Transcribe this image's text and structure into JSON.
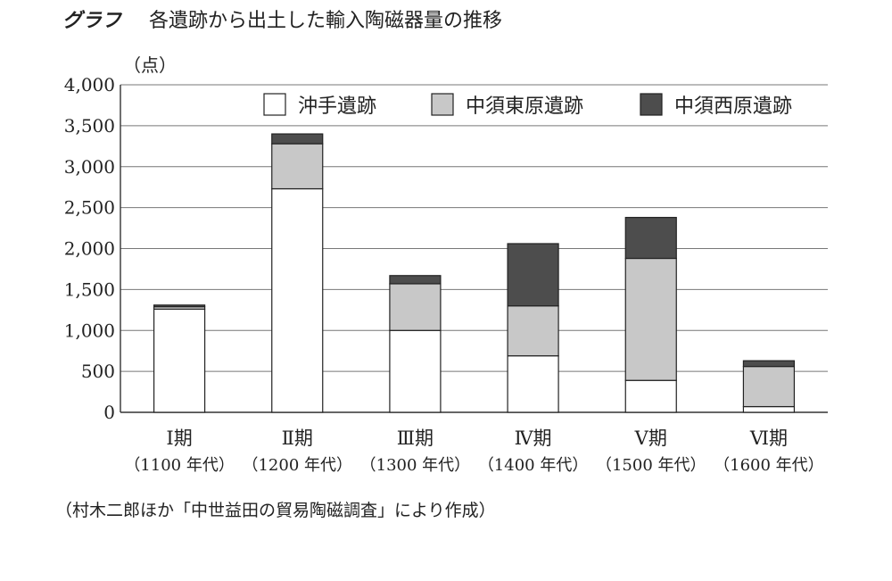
{
  "figure": {
    "label": "グラフ",
    "title": "各遺跡から出土した輸入陶磁器量の推移",
    "source_note": "（村木二郎ほか「中世益田の貿易陶磁調査」により作成）"
  },
  "chart_data": {
    "type": "bar",
    "stacked": true,
    "ylabel": "（点）",
    "xlabel": "",
    "ylim": [
      0,
      4000
    ],
    "yticks": [
      0,
      500,
      1000,
      1500,
      2000,
      2500,
      3000,
      3500,
      4000
    ],
    "ytick_labels": [
      "0",
      "500",
      "1,000",
      "1,500",
      "2,000",
      "2,500",
      "3,000",
      "3,500",
      "4,000"
    ],
    "grid": true,
    "legend_position": "top-right",
    "categories": [
      "Ⅰ期",
      "Ⅱ期",
      "Ⅲ期",
      "Ⅳ期",
      "Ⅴ期",
      "Ⅵ期"
    ],
    "category_sublabels": [
      "（1100 年代）",
      "（1200 年代）",
      "（1300 年代）",
      "（1400 年代）",
      "（1500 年代）",
      "（1600 年代）"
    ],
    "series": [
      {
        "name": "沖手遺跡",
        "color": "#ffffff",
        "values": [
          1260,
          2730,
          1000,
          690,
          390,
          70
        ]
      },
      {
        "name": "中須東原遺跡",
        "color": "#c8c8c8",
        "values": [
          30,
          550,
          570,
          610,
          1490,
          490
        ]
      },
      {
        "name": "中須西原遺跡",
        "color": "#4d4d4d",
        "values": [
          20,
          120,
          100,
          760,
          500,
          70
        ]
      }
    ]
  }
}
